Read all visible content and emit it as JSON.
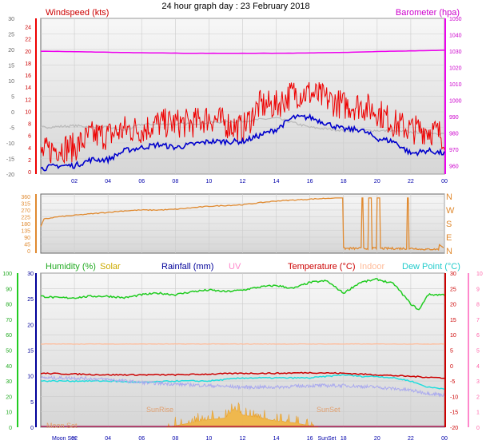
{
  "header": {
    "title": "24 hour graph day : 23 February 2018"
  },
  "colors": {
    "wind_avg": "#0000cc",
    "wind_gust": "#ee0000",
    "baro": "#ee00ee",
    "temp_grey": "#b8b8b8",
    "dir": "#e08a30",
    "humidity": "#22cc22",
    "solar": "#e8b020",
    "rain": "#000099",
    "uv": "#ff88cc",
    "temperature": "#cc0000",
    "indoor": "#ffbb99",
    "dewpoint": "#22dddd",
    "grid": "#cccccc",
    "panel_top": "#f6f6f6",
    "panel_bottom": "#d8d8d8"
  },
  "chart_data": [
    {
      "type": "line",
      "title": "24 hour graph day : 23 February 2018",
      "labels": {
        "left": "Windspeed (kts)",
        "right": "Barometer (hpa)"
      },
      "x_ticks": [
        "02",
        "04",
        "06",
        "08",
        "10",
        "12",
        "14",
        "16",
        "18",
        "20",
        "22",
        "00"
      ],
      "x_range_hours": [
        0,
        24
      ],
      "left_axis_outer": {
        "ticks": [
          30,
          25,
          20,
          15,
          10,
          5,
          0,
          -5,
          -10,
          -15,
          -20
        ],
        "range": [
          -20,
          30
        ]
      },
      "left_axis_inner": {
        "ticks": [
          24,
          22,
          20,
          18,
          16,
          14,
          12,
          10,
          8,
          6,
          4,
          2,
          0
        ],
        "range": [
          0,
          25
        ]
      },
      "right_axis": {
        "ticks": [
          1050,
          1040,
          1030,
          1020,
          1010,
          1000,
          990,
          980,
          970,
          960
        ],
        "range": [
          955,
          1050
        ]
      },
      "series": [
        {
          "key": "baro",
          "axis": "right",
          "x": [
            0,
            3,
            6,
            9,
            12,
            15,
            18,
            21,
            24
          ],
          "values": [
            1030,
            1029.5,
            1029,
            1028.7,
            1028.7,
            1028.8,
            1029.2,
            1030,
            1030.5
          ]
        },
        {
          "key": "temp_grey",
          "axis": "left_outer",
          "x": [
            0,
            2,
            4,
            5,
            6,
            8,
            10,
            12,
            13,
            14,
            16,
            18,
            20,
            22,
            24
          ],
          "values": [
            -5,
            -4.5,
            -5,
            -6,
            -4,
            -4,
            -3.5,
            -3,
            -2.5,
            -2,
            -5,
            -6,
            -6,
            -6.5,
            -7
          ]
        },
        {
          "key": "wind_gust",
          "axis": "left_inner",
          "x": [
            0,
            1,
            2,
            3,
            4,
            5,
            6,
            7,
            8,
            9,
            10,
            11,
            12,
            13,
            14,
            15,
            16,
            17,
            18,
            19,
            20,
            21,
            22,
            23,
            24
          ],
          "values": [
            3,
            4,
            4,
            6,
            6,
            7,
            7,
            8,
            8,
            8,
            9,
            8,
            7,
            11,
            11,
            13,
            13,
            12,
            11,
            11,
            10,
            8,
            7,
            7,
            6
          ]
        },
        {
          "key": "wind_avg",
          "axis": "left_inner",
          "x": [
            0,
            1,
            2,
            3,
            4,
            5,
            6,
            7,
            8,
            9,
            10,
            11,
            12,
            13,
            14,
            15,
            16,
            17,
            18,
            19,
            20,
            21,
            22,
            23,
            24
          ],
          "values": [
            0.5,
            1,
            1,
            2,
            2,
            3.5,
            4,
            4.5,
            4,
            4.5,
            5,
            5,
            5,
            6,
            7,
            9,
            9,
            8,
            7,
            7,
            5.5,
            5,
            3,
            3.5,
            3
          ]
        }
      ]
    },
    {
      "type": "line",
      "left_axis": {
        "ticks": [
          360,
          315,
          270,
          225,
          180,
          135,
          90,
          45,
          0
        ],
        "range": [
          0,
          360
        ]
      },
      "right_axis": {
        "ticks": [
          "N",
          "W",
          "S",
          "E",
          "N"
        ]
      },
      "x_range_hours": [
        0,
        24
      ],
      "series": [
        {
          "key": "dir",
          "x": [
            0,
            0.2,
            1,
            3,
            4,
            5,
            6,
            7,
            8,
            9,
            10,
            12,
            13,
            14,
            16,
            17.4
          ],
          "values": [
            160,
            210,
            225,
            245,
            255,
            265,
            270,
            270,
            275,
            285,
            295,
            305,
            318,
            330,
            342,
            350
          ]
        }
      ]
    },
    {
      "type": "line",
      "labels": {
        "humidity": "Humidity (%)",
        "solar": "Solar",
        "rain": "Rainfall (mm)",
        "uv": "UV",
        "temperature": "Temperature (°C)",
        "indoor": "Indoor",
        "dewpoint": "Dew Point (°C)"
      },
      "x_ticks": [
        "02",
        "04",
        "06",
        "08",
        "10",
        "12",
        "14",
        "16",
        "18",
        "20",
        "22",
        "00"
      ],
      "x_range_hours": [
        0,
        24
      ],
      "axis_humidity": {
        "ticks": [
          100,
          90,
          80,
          70,
          60,
          50,
          40,
          30,
          20,
          10,
          0
        ],
        "range": [
          0,
          100
        ]
      },
      "axis_rain": {
        "ticks": [
          30,
          25,
          20,
          15,
          10,
          5,
          0
        ],
        "range": [
          0,
          30
        ]
      },
      "axis_temp": {
        "ticks": [
          30,
          25,
          20,
          15,
          10,
          5,
          0,
          -5,
          -10,
          -15,
          -20
        ],
        "range": [
          -20,
          30
        ]
      },
      "axis_uv": {
        "ticks": [
          10,
          9,
          8,
          7,
          6,
          5,
          4,
          3,
          2,
          1,
          0
        ],
        "range": [
          0,
          10
        ]
      },
      "annotations": [
        "Moon Set",
        "SunRise",
        "SunSet"
      ],
      "series": [
        {
          "key": "humidity",
          "axis": "humidity",
          "x": [
            0,
            1,
            2,
            3,
            4,
            5,
            6,
            7,
            8,
            9,
            10,
            11,
            12,
            13,
            14,
            15,
            16,
            17,
            18,
            19,
            20,
            21,
            22,
            22.5,
            23,
            24
          ],
          "values": [
            85,
            84,
            84,
            85,
            85,
            84,
            86,
            87,
            86,
            88,
            89,
            88,
            89,
            91,
            92,
            90,
            94,
            95,
            87,
            94,
            96,
            93,
            80,
            76,
            86,
            86
          ]
        },
        {
          "key": "indoor",
          "axis": "temp",
          "x": [
            0,
            24
          ],
          "values": [
            7,
            7
          ]
        },
        {
          "key": "temperature",
          "axis": "temp",
          "x": [
            0,
            4,
            8,
            12,
            14,
            16,
            18,
            20,
            22,
            24
          ],
          "values": [
            -2.5,
            -3,
            -3,
            -2.5,
            -2.5,
            -2.3,
            -2.5,
            -3,
            -3.5,
            -4
          ]
        },
        {
          "key": "dewpoint",
          "axis": "temp",
          "x": [
            0,
            2,
            4,
            6,
            8,
            10,
            12,
            14,
            16,
            17,
            18,
            19,
            20,
            21,
            22,
            23,
            24
          ],
          "values": [
            -5,
            -5,
            -5,
            -5.5,
            -5,
            -5,
            -4,
            -4,
            -4,
            -3.5,
            -3,
            -3.5,
            -3.5,
            -4,
            -5,
            -7,
            -7.5
          ]
        },
        {
          "key": "rain_light",
          "axis": "temp",
          "x": [
            0,
            2,
            4,
            6,
            8,
            10,
            12,
            14,
            16,
            18,
            20,
            22,
            23,
            24
          ],
          "values": [
            -4,
            -4,
            -4.5,
            -5.5,
            -6,
            -6.5,
            -7,
            -7,
            -6.5,
            -6.5,
            -7,
            -8,
            -9,
            -9.5
          ]
        },
        {
          "key": "solar",
          "axis": "temp",
          "x": [
            7.5,
            8,
            9,
            10,
            11,
            11.5,
            12,
            13,
            14,
            15,
            16,
            16.5
          ],
          "values": [
            -20,
            -19.5,
            -18.5,
            -17.5,
            -17,
            -14,
            -16,
            -17,
            -18,
            -18.5,
            -19.5,
            -20
          ]
        }
      ]
    }
  ]
}
